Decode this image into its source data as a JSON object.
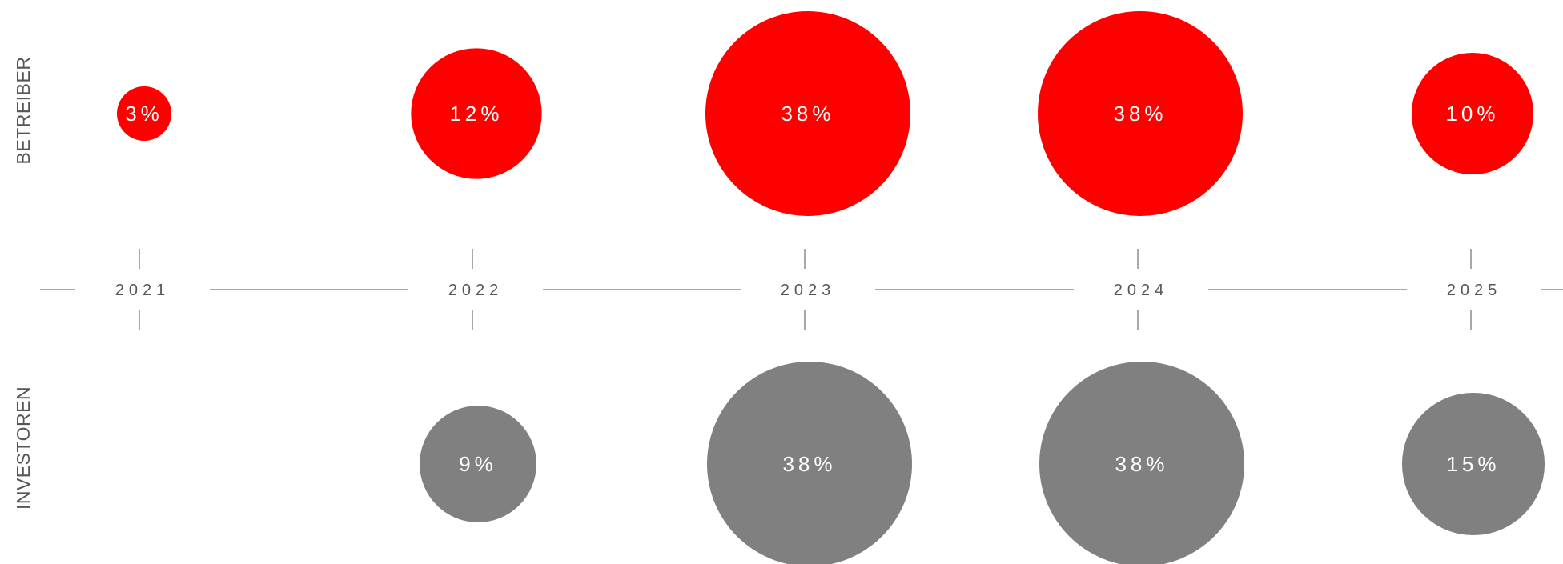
{
  "chart_data": {
    "type": "bubble",
    "categories": [
      "2021",
      "2022",
      "2023",
      "2024",
      "2025"
    ],
    "series": [
      {
        "name": "BETREIBER",
        "color": "#ff0000",
        "values": [
          3,
          12,
          38,
          38,
          10
        ],
        "labels": [
          "3%",
          "12%",
          "38%",
          "38%",
          "10%"
        ]
      },
      {
        "name": "INVESTOREN",
        "color": "#808080",
        "values": [
          null,
          9,
          38,
          38,
          15
        ],
        "labels": [
          "",
          "9%",
          "38%",
          "38%",
          "15%"
        ]
      }
    ],
    "value_unit": "%",
    "axis": "horizontal timeline with year ticks"
  }
}
